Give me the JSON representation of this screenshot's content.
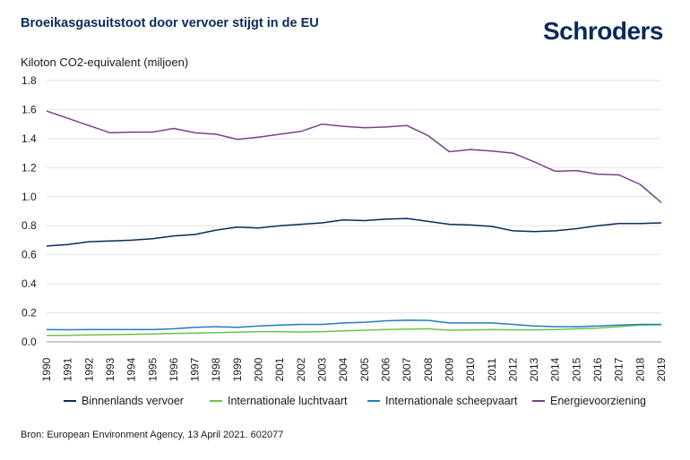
{
  "brand": "Schroders",
  "colors": {
    "title": "#0b2a5b",
    "grid": "#e3e3e3",
    "binnenlands": "#0b2a5b",
    "luchtvaart": "#6cc24a",
    "scheepvaart": "#1f7fb8",
    "energie": "#7b3f8c"
  },
  "chart_data": {
    "type": "line",
    "title": "Broeikasgasuitstoot door vervoer stijgt in de EU",
    "ylabel": "Kiloton CO2-equivalent (miljoen)",
    "xlabel": "",
    "ylim": [
      0,
      1.8
    ],
    "yticks": [
      "0.0",
      "0.2",
      "0.4",
      "0.6",
      "0.8",
      "1.0",
      "1.2",
      "1.4",
      "1.6",
      "1.8"
    ],
    "grid": true,
    "legend": "bottom",
    "x": [
      "1990",
      "1991",
      "1992",
      "1993",
      "1994",
      "1995",
      "1996",
      "1997",
      "1998",
      "1999",
      "2000",
      "2001",
      "2002",
      "2003",
      "2004",
      "2005",
      "2006",
      "2007",
      "2008",
      "2009",
      "2010",
      "2011",
      "2012",
      "2013",
      "2014",
      "2015",
      "2016",
      "2017",
      "2018",
      "2019"
    ],
    "series": [
      {
        "name": "Binnenlands vervoer",
        "color": "#0b2a5b",
        "values": [
          0.66,
          0.67,
          0.69,
          0.695,
          0.7,
          0.71,
          0.73,
          0.74,
          0.77,
          0.79,
          0.785,
          0.8,
          0.81,
          0.82,
          0.84,
          0.835,
          0.845,
          0.85,
          0.83,
          0.81,
          0.805,
          0.795,
          0.765,
          0.76,
          0.765,
          0.78,
          0.8,
          0.815,
          0.815,
          0.82
        ]
      },
      {
        "name": "Internationale luchtvaart",
        "color": "#6cc24a",
        "values": [
          0.045,
          0.045,
          0.048,
          0.05,
          0.052,
          0.055,
          0.058,
          0.06,
          0.063,
          0.067,
          0.07,
          0.07,
          0.068,
          0.07,
          0.075,
          0.08,
          0.085,
          0.088,
          0.09,
          0.08,
          0.082,
          0.085,
          0.083,
          0.083,
          0.085,
          0.09,
          0.095,
          0.105,
          0.115,
          0.118
        ]
      },
      {
        "name": "Internationale scheepvaart",
        "color": "#1f7fb8",
        "values": [
          0.085,
          0.083,
          0.085,
          0.085,
          0.085,
          0.085,
          0.09,
          0.1,
          0.105,
          0.1,
          0.11,
          0.115,
          0.12,
          0.12,
          0.13,
          0.135,
          0.145,
          0.15,
          0.148,
          0.13,
          0.13,
          0.13,
          0.12,
          0.11,
          0.105,
          0.105,
          0.11,
          0.115,
          0.12,
          0.12
        ]
      },
      {
        "name": "Energievoorziening",
        "color": "#7b3f8c",
        "values": [
          1.59,
          1.54,
          1.49,
          1.44,
          1.445,
          1.445,
          1.47,
          1.44,
          1.43,
          1.395,
          1.41,
          1.43,
          1.45,
          1.5,
          1.485,
          1.475,
          1.48,
          1.49,
          1.42,
          1.31,
          1.325,
          1.315,
          1.3,
          1.24,
          1.175,
          1.18,
          1.155,
          1.15,
          1.085,
          0.96
        ]
      }
    ]
  },
  "source": "Bron: European Environment Agency, 13 April 2021. 602077"
}
